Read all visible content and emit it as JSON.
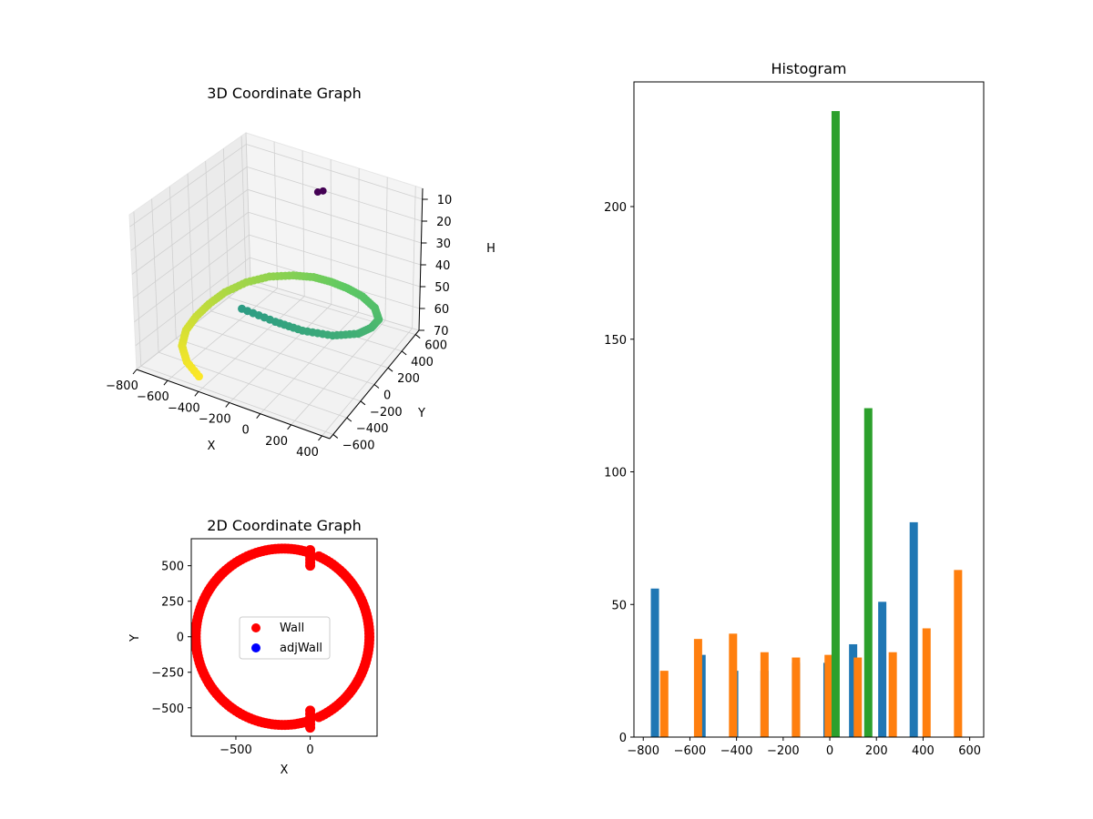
{
  "chart_data": [
    {
      "type": "scatter3d",
      "title": "3D Coordinate Graph",
      "xlabel": "X",
      "ylabel": "Y",
      "zlabel": "H",
      "xlim": [
        -800,
        450
      ],
      "ylim": [
        -650,
        650
      ],
      "zlim": [
        5,
        70
      ],
      "zinverted": true,
      "xticks": [
        -800,
        -600,
        -400,
        -200,
        0,
        200,
        400
      ],
      "yticks": [
        -600,
        -400,
        -200,
        0,
        200,
        400,
        600
      ],
      "zticks": [
        10,
        20,
        30,
        40,
        50,
        60,
        70
      ],
      "colormap": "viridis",
      "point_color": "#440154",
      "outliers": [
        [
          -100,
          300,
          7
        ],
        [
          -80,
          330,
          7
        ]
      ],
      "path": [
        [
          -200,
          -480,
          36
        ],
        [
          0,
          -450,
          38
        ],
        [
          150,
          -400,
          40
        ],
        [
          300,
          -300,
          42
        ],
        [
          400,
          -150,
          44
        ],
        [
          420,
          0,
          46
        ],
        [
          400,
          150,
          48
        ],
        [
          300,
          300,
          50
        ],
        [
          150,
          420,
          52
        ],
        [
          0,
          500,
          54
        ],
        [
          -150,
          560,
          56
        ],
        [
          -300,
          600,
          58
        ],
        [
          -450,
          600,
          60
        ],
        [
          -600,
          560,
          62
        ],
        [
          -700,
          450,
          63
        ],
        [
          -760,
          300,
          64
        ],
        [
          -780,
          150,
          65
        ],
        [
          -780,
          0,
          66
        ],
        [
          -760,
          -150,
          67
        ],
        [
          -700,
          -300,
          68
        ],
        [
          -600,
          -420,
          69
        ],
        [
          -450,
          -520,
          70
        ]
      ]
    },
    {
      "type": "scatter",
      "title": "2D Coordinate Graph",
      "xlabel": "X",
      "ylabel": "Y",
      "xlim": [
        -800,
        450
      ],
      "ylim": [
        -700,
        690
      ],
      "xticks": [
        -500,
        0
      ],
      "yticks": [
        500,
        250,
        0,
        -250,
        -500
      ],
      "legend": {
        "location": "center",
        "entries": [
          {
            "label": "Wall",
            "color": "#ff0000"
          },
          {
            "label": "adjWall",
            "color": "#0000ff"
          }
        ]
      },
      "series": [
        {
          "name": "Wall",
          "color": "#ff0000",
          "center": [
            -180,
            0
          ],
          "rx": 590,
          "ry": 640,
          "gap": [
            {
              "x": 0,
              "y_from": -640,
              "y_to": -520
            },
            {
              "x": 0,
              "y_from": 500,
              "y_to": 610
            }
          ]
        },
        {
          "name": "adjWall",
          "color": "#0000ff",
          "points": []
        }
      ]
    },
    {
      "type": "bar",
      "title": "Histogram",
      "xlim": [
        -840,
        660
      ],
      "ylim": [
        0,
        247
      ],
      "xticks": [
        -800,
        -600,
        -400,
        -200,
        0,
        200,
        400,
        600
      ],
      "yticks": [
        0,
        50,
        100,
        150,
        200
      ],
      "series": [
        {
          "name": "",
          "color": "#1f77b4",
          "bins": [
            {
              "x": -750,
              "value": 56
            },
            {
              "x": -550,
              "value": 31
            },
            {
              "x": -410,
              "value": 25
            },
            {
              "x": -280,
              "value": 25
            },
            {
              "x": -145,
              "value": 28
            },
            {
              "x": -10,
              "value": 28
            },
            {
              "x": 100,
              "value": 35
            },
            {
              "x": 225,
              "value": 51
            },
            {
              "x": 360,
              "value": 81
            }
          ]
        },
        {
          "name": "",
          "color": "#ff7f0e",
          "bins": [
            {
              "x": -710,
              "value": 25
            },
            {
              "x": -565,
              "value": 37
            },
            {
              "x": -415,
              "value": 39
            },
            {
              "x": -280,
              "value": 32
            },
            {
              "x": -145,
              "value": 30
            },
            {
              "x": -5,
              "value": 31
            },
            {
              "x": 120,
              "value": 30
            },
            {
              "x": 270,
              "value": 32
            },
            {
              "x": 415,
              "value": 41
            },
            {
              "x": 550,
              "value": 63
            }
          ]
        },
        {
          "name": "",
          "color": "#2ca02c",
          "bins": [
            {
              "x": 25,
              "value": 236
            },
            {
              "x": 165,
              "value": 124
            }
          ]
        }
      ]
    }
  ]
}
